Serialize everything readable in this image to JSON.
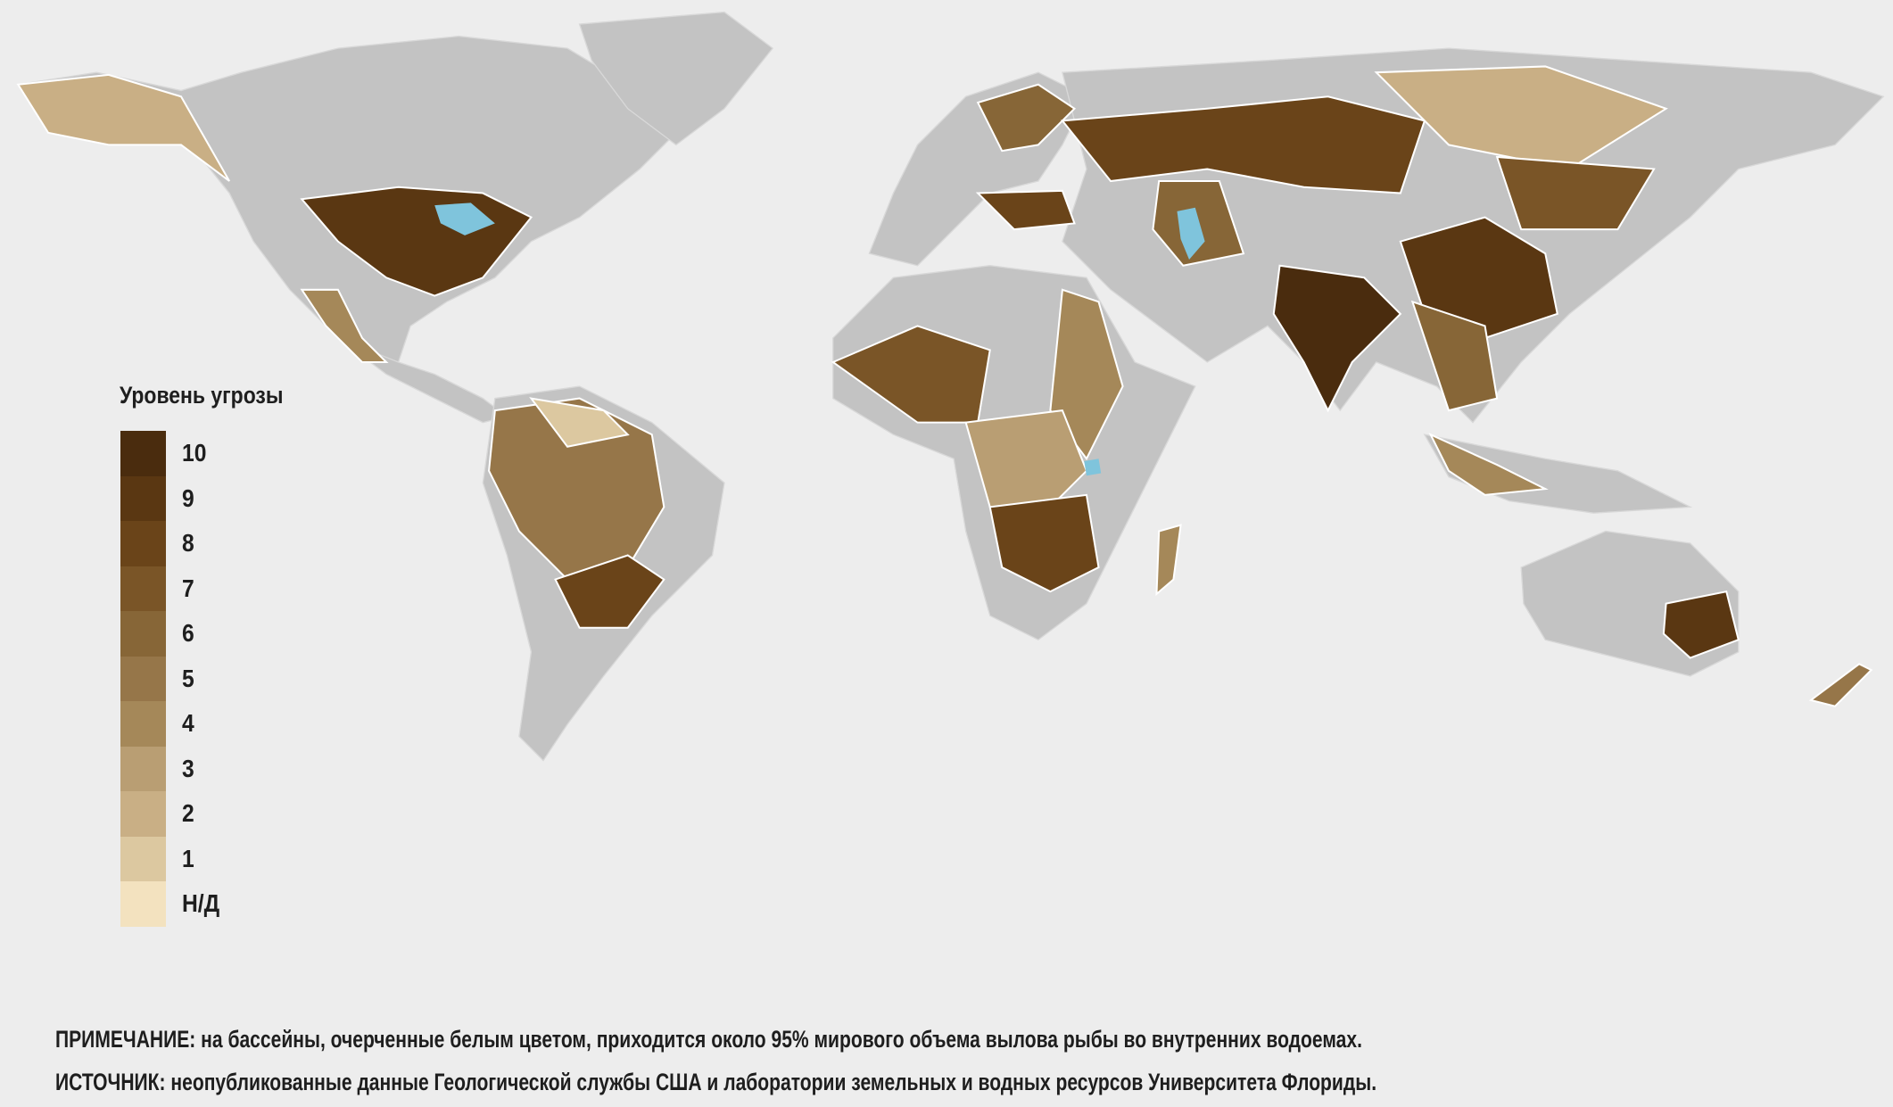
{
  "legend": {
    "title": "Уровень угрозы",
    "items": [
      {
        "label": "10",
        "color": "#4a2c0e"
      },
      {
        "label": "9",
        "color": "#5a3712"
      },
      {
        "label": "8",
        "color": "#6a4419"
      },
      {
        "label": "7",
        "color": "#7a5527"
      },
      {
        "label": "6",
        "color": "#876637"
      },
      {
        "label": "5",
        "color": "#967649"
      },
      {
        "label": "4",
        "color": "#a58859"
      },
      {
        "label": "3",
        "color": "#b99e73"
      },
      {
        "label": "2",
        "color": "#c9af85"
      },
      {
        "label": "1",
        "color": "#dcc8a0"
      },
      {
        "label": "Н/Д",
        "color": "#f3e2bf"
      }
    ]
  },
  "colors": {
    "land": "#c3c3c3",
    "water": "#7fc4dc",
    "background": "#ededed",
    "basin_outline": "#ffffff"
  },
  "note": "ПРИМЕЧАНИЕ: на бассейны, очерченные белым цветом, приходится около 95% мирового объема вылова рыбы во внутренних водоемах.",
  "source": "ИСТОЧНИК: неопубликованные данные Геологической службы США и лаборатории земельных и водных ресурсов Университета Флориды."
}
